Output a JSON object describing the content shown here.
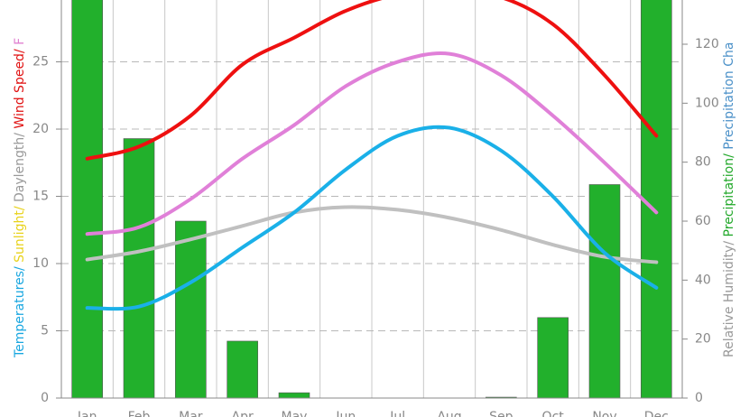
{
  "chart_data": {
    "type": "climate",
    "categories": [
      "Jan",
      "Feb",
      "Mar",
      "Apr",
      "May",
      "Jun",
      "Jul",
      "Aug",
      "Sep",
      "Oct",
      "Nov",
      "Dec"
    ],
    "ylim": [
      0,
      29.6
    ],
    "yticks": [
      0,
      5,
      10,
      15,
      20,
      25
    ],
    "y2lim": [
      0,
      135
    ],
    "y2ticks": [
      0,
      20,
      40,
      60,
      80,
      100,
      120
    ],
    "grid": true,
    "y_label_parts": [
      {
        "text": "Temperatures/ ",
        "color": "#1aa7e0"
      },
      {
        "text": "Sunlight/ ",
        "color": "#e8d21a"
      },
      {
        "text": "Daylength/ ",
        "color": "#999999"
      },
      {
        "text": "Wind Speed/ ",
        "color": "#e01010"
      },
      {
        "text": "F",
        "color": "#e080d0"
      }
    ],
    "y2_label_parts": [
      {
        "text": "Relative Humidity/ ",
        "color": "#999999"
      },
      {
        "text": "Precipitation/ ",
        "color": "#22a82a"
      },
      {
        "text": "Precipitation Cha",
        "color": "#4a90c8"
      }
    ],
    "series": [
      {
        "kind": "bar",
        "axis": "y2",
        "color": "#22b02c",
        "values": [
          145,
          88,
          60,
          19.3,
          1.8,
          0,
          0,
          0,
          0.3,
          27.3,
          72.4,
          140
        ]
      },
      {
        "kind": "line",
        "color": "#c0c0c0",
        "values": [
          10.3,
          10.9,
          11.8,
          12.8,
          13.8,
          14.2,
          14.0,
          13.4,
          12.5,
          11.4,
          10.5,
          10.1
        ]
      },
      {
        "kind": "line",
        "color": "#1ab0e8",
        "values": [
          6.7,
          6.8,
          8.6,
          11.2,
          13.8,
          17,
          19.5,
          20.1,
          18.4,
          15,
          10.8,
          8.2
        ]
      },
      {
        "kind": "line",
        "color": "#e080d8",
        "values": [
          12.2,
          12.7,
          14.8,
          17.8,
          20.3,
          23.2,
          25,
          25.6,
          24,
          21,
          17.5,
          13.8
        ]
      },
      {
        "kind": "line",
        "color": "#ee1010",
        "values": [
          17.8,
          18.7,
          21,
          24.8,
          26.8,
          28.8,
          30.0,
          30.2,
          29.8,
          27.8,
          24,
          19.5
        ]
      }
    ]
  }
}
